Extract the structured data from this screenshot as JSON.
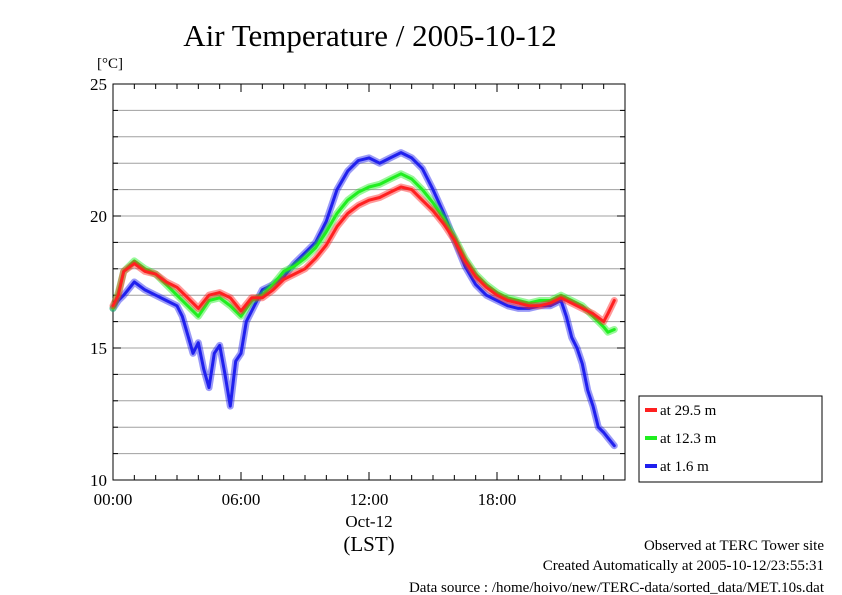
{
  "chart_data": {
    "type": "line",
    "title": "Air Temperature / 2005-10-12",
    "ylabel": "[°C]",
    "xlabel": "(LST)",
    "date_label": "Oct-12",
    "xlim": [
      0,
      24
    ],
    "ylim": [
      10,
      25
    ],
    "x_ticks": [
      {
        "value": 0,
        "label": "00:00"
      },
      {
        "value": 6,
        "label": "06:00"
      },
      {
        "value": 12,
        "label": "12:00"
      },
      {
        "value": 18,
        "label": "18:00"
      }
    ],
    "y_ticks": [
      {
        "value": 10,
        "label": "10"
      },
      {
        "value": 15,
        "label": "15"
      },
      {
        "value": 20,
        "label": "20"
      },
      {
        "value": 25,
        "label": "25"
      }
    ],
    "grid": true,
    "legend_position": "right",
    "series": [
      {
        "name": "at 29.5 m",
        "color": "#ff2020",
        "x": [
          0,
          0.25,
          0.5,
          1,
          1.5,
          2,
          2.5,
          3,
          3.5,
          4,
          4.5,
          5,
          5.5,
          6,
          6.5,
          7,
          7.5,
          8,
          8.5,
          9,
          9.5,
          10,
          10.5,
          11,
          11.5,
          12,
          12.5,
          13,
          13.5,
          14,
          14.5,
          15,
          15.5,
          16,
          16.5,
          17,
          17.5,
          18,
          18.5,
          19,
          19.5,
          20,
          20.5,
          21,
          21.5,
          22,
          22.5,
          23,
          23.2,
          23.5
        ],
        "y": [
          16.6,
          17.0,
          17.9,
          18.2,
          17.9,
          17.8,
          17.5,
          17.3,
          16.9,
          16.5,
          17.0,
          17.1,
          16.9,
          16.4,
          16.9,
          16.9,
          17.2,
          17.6,
          17.8,
          18.0,
          18.4,
          18.9,
          19.6,
          20.1,
          20.4,
          20.6,
          20.7,
          20.9,
          21.1,
          21.0,
          20.6,
          20.2,
          19.7,
          19.1,
          18.3,
          17.7,
          17.3,
          17.0,
          16.8,
          16.7,
          16.6,
          16.6,
          16.7,
          16.9,
          16.7,
          16.5,
          16.3,
          16.0,
          16.3,
          16.8
        ]
      },
      {
        "name": "at 12.3 m",
        "color": "#20ee20",
        "x": [
          0,
          0.25,
          0.5,
          1,
          1.5,
          2,
          2.5,
          3,
          3.5,
          4,
          4.5,
          5,
          5.5,
          6,
          6.5,
          7,
          7.5,
          8,
          8.5,
          9,
          9.5,
          10,
          10.5,
          11,
          11.5,
          12,
          12.5,
          13,
          13.5,
          14,
          14.5,
          15,
          15.5,
          16,
          16.5,
          17,
          17.5,
          18,
          18.5,
          19,
          19.5,
          20,
          20.5,
          21,
          21.5,
          22,
          22.5,
          23,
          23.2,
          23.5
        ],
        "y": [
          16.5,
          17.1,
          17.9,
          18.3,
          18.0,
          17.8,
          17.4,
          17.0,
          16.6,
          16.2,
          16.8,
          16.9,
          16.6,
          16.2,
          16.8,
          17.0,
          17.4,
          17.9,
          18.1,
          18.4,
          18.8,
          19.4,
          20.1,
          20.6,
          20.9,
          21.1,
          21.2,
          21.4,
          21.6,
          21.4,
          21.0,
          20.5,
          19.9,
          19.2,
          18.4,
          17.8,
          17.4,
          17.1,
          16.9,
          16.8,
          16.7,
          16.8,
          16.8,
          17.0,
          16.8,
          16.6,
          16.2,
          15.8,
          15.6,
          15.7
        ]
      },
      {
        "name": "at 1.6 m",
        "color": "#2020ee",
        "x": [
          0,
          0.25,
          0.5,
          1,
          1.5,
          2,
          2.5,
          3,
          3.25,
          3.5,
          3.75,
          4,
          4.25,
          4.5,
          4.75,
          5,
          5.25,
          5.5,
          5.75,
          6,
          6.25,
          6.5,
          7,
          7.5,
          8,
          8.5,
          9,
          9.5,
          10,
          10.5,
          11,
          11.5,
          12,
          12.5,
          13,
          13.5,
          14,
          14.5,
          15,
          15.5,
          16,
          16.5,
          17,
          17.5,
          18,
          18.5,
          19,
          19.5,
          20,
          20.5,
          21,
          21.25,
          21.5,
          21.75,
          22,
          22.25,
          22.5,
          22.75,
          23,
          23.2,
          23.5
        ],
        "y": [
          16.5,
          16.8,
          17.0,
          17.5,
          17.2,
          17.0,
          16.8,
          16.6,
          16.2,
          15.5,
          14.8,
          15.2,
          14.2,
          13.5,
          14.8,
          15.1,
          14.0,
          12.8,
          14.5,
          14.8,
          16.0,
          16.4,
          17.2,
          17.4,
          17.7,
          18.2,
          18.6,
          19.0,
          19.8,
          21.0,
          21.7,
          22.1,
          22.2,
          22.0,
          22.2,
          22.4,
          22.2,
          21.8,
          21.0,
          20.1,
          19.1,
          18.1,
          17.4,
          17.0,
          16.8,
          16.6,
          16.5,
          16.5,
          16.6,
          16.6,
          16.8,
          16.2,
          15.4,
          15.0,
          14.4,
          13.4,
          12.8,
          12.0,
          11.8,
          11.6,
          11.3
        ]
      }
    ],
    "annotations": [
      "Observed at TERC Tower site",
      "Created Automatically at 2005-10-12/23:55:31",
      "Data source : /home/hoivo/new/TERC-data/sorted_data/MET.10s.dat"
    ]
  }
}
